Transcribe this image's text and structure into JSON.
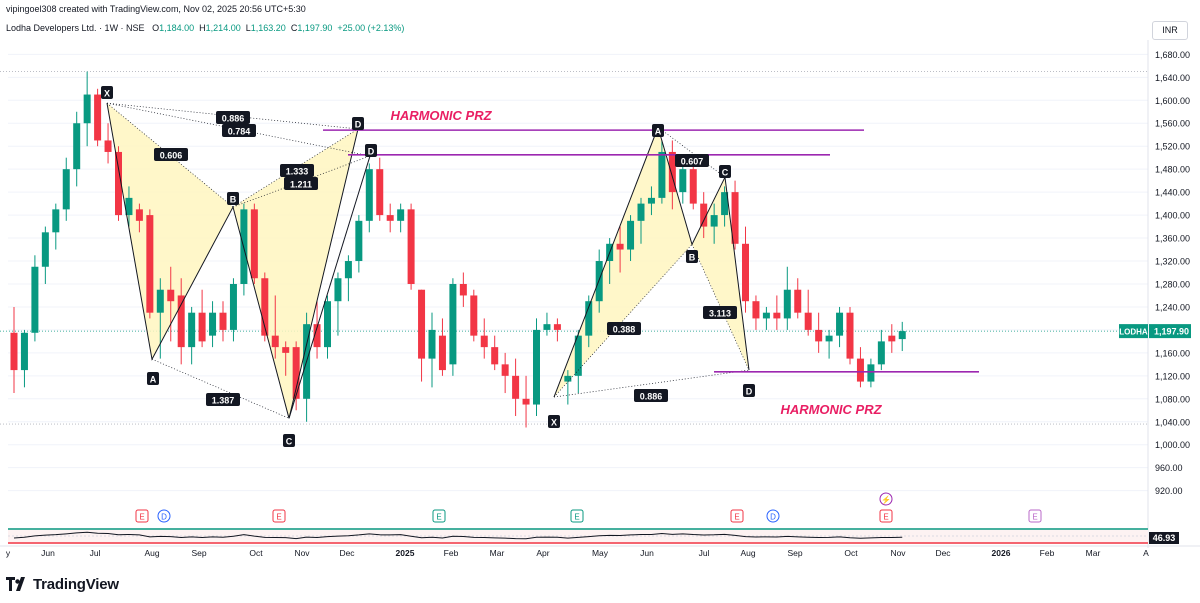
{
  "header": {
    "created_by": "vipingoel308 created with TradingView.com, Nov 02, 2025 20:56 UTC+5:30",
    "symbol": "Lodha Developers Ltd. · 1W · NSE",
    "o_label": "O",
    "o_value": "1,184.00",
    "h_label": "H",
    "h_value": "1,214.00",
    "l_label": "L",
    "l_value": "1,163.20",
    "c_label": "C",
    "c_value": "1,197.90",
    "change": "+25.00 (+2.13%)",
    "currency": "INR"
  },
  "footer": {
    "brand": "TradingView",
    "logo_icon": "tradingview-logo-icon"
  },
  "colors": {
    "up": "#089981",
    "down": "#f23645",
    "pattern_fill": "#fff6bf",
    "prz_line": "#9c27b0",
    "annotation_text": "#e91e63"
  },
  "chart_data": {
    "type": "candlestick",
    "y_axis_ticks": [
      1680,
      1640,
      1600,
      1560,
      1520,
      1480,
      1440,
      1400,
      1360,
      1320,
      1280,
      1240,
      1200,
      1160,
      1120,
      1080,
      1040,
      1000,
      960,
      920
    ],
    "y_tick_labels": [
      "1,680.00",
      "1,640.00",
      "1,600.00",
      "1,560.00",
      "1,520.00",
      "1,480.00",
      "1,440.00",
      "1,400.00",
      "1,360.00",
      "1,320.00",
      "1,280.00",
      "1,240.00",
      "1,200.00",
      "1,160.00",
      "1,120.00",
      "1,080.00",
      "1,040.00",
      "1,000.00",
      "960.00",
      "920.00"
    ],
    "ylim": [
      895,
      1705
    ],
    "x_axis_labels": [
      "y",
      "Jun",
      "Jul",
      "Aug",
      "Sep",
      "Oct",
      "Nov",
      "Dec",
      "2025",
      "Feb",
      "Mar",
      "Apr",
      "May",
      "Jun",
      "Jul",
      "Aug",
      "Sep",
      "Oct",
      "Nov",
      "Dec",
      "2026",
      "Feb",
      "Mar",
      "A"
    ],
    "current_price_label": "LODHA",
    "current_price": "1,197.90",
    "candles": [
      [
        1195,
        1240,
        1090,
        1130
      ],
      [
        1130,
        1200,
        1100,
        1195
      ],
      [
        1195,
        1330,
        1180,
        1310
      ],
      [
        1310,
        1380,
        1280,
        1370
      ],
      [
        1370,
        1420,
        1340,
        1410
      ],
      [
        1410,
        1500,
        1390,
        1480
      ],
      [
        1480,
        1580,
        1450,
        1560
      ],
      [
        1560,
        1650,
        1520,
        1610
      ],
      [
        1610,
        1620,
        1520,
        1530
      ],
      [
        1530,
        1560,
        1490,
        1510
      ],
      [
        1510,
        1520,
        1390,
        1400
      ],
      [
        1400,
        1450,
        1380,
        1430
      ],
      [
        1410,
        1420,
        1370,
        1390
      ],
      [
        1400,
        1410,
        1220,
        1230
      ],
      [
        1230,
        1290,
        1150,
        1270
      ],
      [
        1270,
        1310,
        1180,
        1250
      ],
      [
        1260,
        1290,
        1140,
        1170
      ],
      [
        1170,
        1240,
        1140,
        1230
      ],
      [
        1230,
        1270,
        1170,
        1180
      ],
      [
        1190,
        1250,
        1170,
        1230
      ],
      [
        1230,
        1250,
        1180,
        1200
      ],
      [
        1200,
        1290,
        1180,
        1280
      ],
      [
        1280,
        1420,
        1260,
        1410
      ],
      [
        1410,
        1420,
        1280,
        1290
      ],
      [
        1290,
        1300,
        1180,
        1190
      ],
      [
        1190,
        1260,
        1150,
        1170
      ],
      [
        1170,
        1180,
        1120,
        1160
      ],
      [
        1170,
        1180,
        1060,
        1080
      ],
      [
        1080,
        1230,
        1040,
        1210
      ],
      [
        1210,
        1250,
        1150,
        1170
      ],
      [
        1170,
        1260,
        1150,
        1250
      ],
      [
        1250,
        1300,
        1190,
        1290
      ],
      [
        1290,
        1330,
        1250,
        1320
      ],
      [
        1320,
        1400,
        1300,
        1390
      ],
      [
        1390,
        1490,
        1370,
        1480
      ],
      [
        1480,
        1500,
        1390,
        1400
      ],
      [
        1400,
        1420,
        1370,
        1390
      ],
      [
        1390,
        1420,
        1370,
        1410
      ],
      [
        1410,
        1420,
        1270,
        1280
      ],
      [
        1270,
        1270,
        1110,
        1150
      ],
      [
        1150,
        1230,
        1100,
        1200
      ],
      [
        1190,
        1220,
        1120,
        1130
      ],
      [
        1140,
        1290,
        1120,
        1280
      ],
      [
        1280,
        1300,
        1240,
        1260
      ],
      [
        1260,
        1270,
        1180,
        1190
      ],
      [
        1190,
        1220,
        1150,
        1170
      ],
      [
        1170,
        1190,
        1130,
        1140
      ],
      [
        1140,
        1160,
        1090,
        1120
      ],
      [
        1120,
        1150,
        1050,
        1080
      ],
      [
        1080,
        1120,
        1030,
        1070
      ],
      [
        1070,
        1220,
        1050,
        1200
      ],
      [
        1200,
        1230,
        1190,
        1210
      ],
      [
        1210,
        1220,
        1180,
        1200
      ],
      [
        1110,
        1130,
        1070,
        1120
      ],
      [
        1120,
        1200,
        1090,
        1190
      ],
      [
        1190,
        1260,
        1170,
        1250
      ],
      [
        1250,
        1340,
        1230,
        1320
      ],
      [
        1320,
        1360,
        1280,
        1350
      ],
      [
        1350,
        1380,
        1300,
        1340
      ],
      [
        1340,
        1400,
        1320,
        1390
      ],
      [
        1390,
        1430,
        1350,
        1420
      ],
      [
        1420,
        1450,
        1400,
        1430
      ],
      [
        1430,
        1530,
        1420,
        1510
      ],
      [
        1510,
        1530,
        1410,
        1440
      ],
      [
        1440,
        1490,
        1420,
        1480
      ],
      [
        1480,
        1500,
        1410,
        1420
      ],
      [
        1420,
        1440,
        1360,
        1380
      ],
      [
        1380,
        1420,
        1350,
        1400
      ],
      [
        1400,
        1450,
        1380,
        1440
      ],
      [
        1440,
        1460,
        1340,
        1350
      ],
      [
        1350,
        1380,
        1230,
        1250
      ],
      [
        1250,
        1260,
        1200,
        1220
      ],
      [
        1220,
        1240,
        1200,
        1230
      ],
      [
        1230,
        1260,
        1200,
        1220
      ],
      [
        1220,
        1310,
        1200,
        1270
      ],
      [
        1270,
        1290,
        1220,
        1230
      ],
      [
        1230,
        1270,
        1190,
        1200
      ],
      [
        1200,
        1230,
        1160,
        1180
      ],
      [
        1180,
        1200,
        1150,
        1190
      ],
      [
        1190,
        1240,
        1170,
        1230
      ],
      [
        1230,
        1240,
        1140,
        1150
      ],
      [
        1150,
        1170,
        1100,
        1110
      ],
      [
        1110,
        1150,
        1100,
        1140
      ],
      [
        1140,
        1200,
        1130,
        1180
      ],
      [
        1190,
        1210,
        1160,
        1180
      ],
      [
        1184,
        1214,
        1163.2,
        1197.9
      ]
    ],
    "harmonic_pattern_1": {
      "points": [
        {
          "label": "X",
          "value": 1595
        },
        {
          "label": "A",
          "value": 1149
        },
        {
          "label": "B",
          "value": 1414
        },
        {
          "label": "C",
          "value": 1046
        },
        {
          "label": "D",
          "value": 1550
        }
      ],
      "ratios": [
        "0.606",
        "1.387",
        "1.333",
        "1.211",
        "0.886",
        "0.784"
      ],
      "d2_label": "D"
    },
    "harmonic_pattern_2": {
      "points": [
        {
          "label": "X",
          "value": 1083
        },
        {
          "label": "A",
          "value": 1553
        },
        {
          "label": "B",
          "value": 1349
        },
        {
          "label": "C",
          "value": 1466
        },
        {
          "label": "D",
          "value": 1130
        }
      ],
      "ratios": [
        "0.388",
        "0.607",
        "3.113",
        "0.886"
      ]
    },
    "prz_lines": [
      1548,
      1505,
      1127
    ],
    "annotations": [
      "HARMONIC PRZ",
      "HARMONIC PRZ"
    ],
    "indicator_value": "46.93",
    "event_markers": [
      "E",
      "D",
      "E",
      "E",
      "E",
      "E",
      "D",
      "E",
      "E"
    ],
    "flash_icon": "lightning-icon",
    "grid": true
  }
}
